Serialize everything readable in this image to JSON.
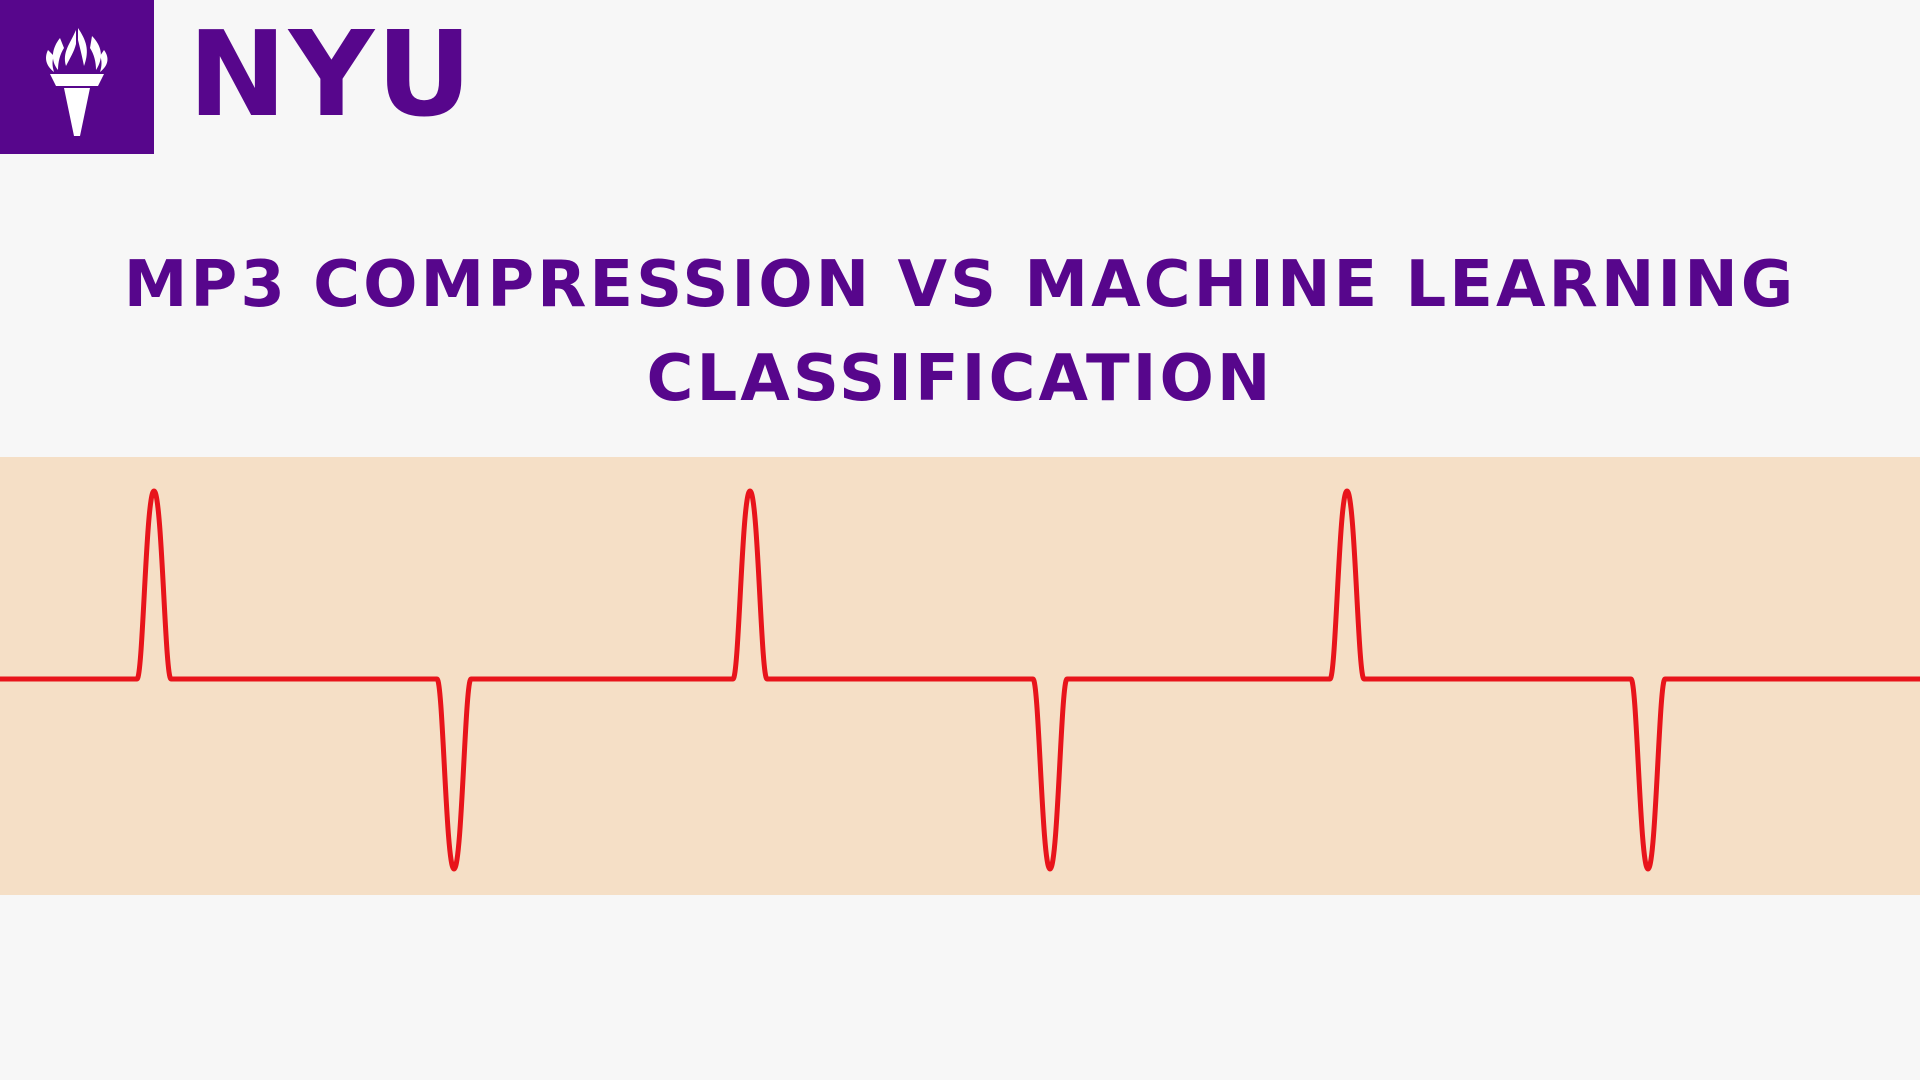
{
  "brand": {
    "wordmark": "NYU",
    "logo_icon": "torch-icon",
    "color": "#57068c"
  },
  "title": {
    "line1": "MP3 COMPRESSION VS MACHINE LEARNING",
    "line2": "CLASSIFICATION"
  },
  "waveform": {
    "icon": "waveform-pulse-icon",
    "line_color": "#e8141b",
    "band_color": "#f5dfc6"
  },
  "colors": {
    "background": "#f7f7f7",
    "accent": "#57068c"
  }
}
